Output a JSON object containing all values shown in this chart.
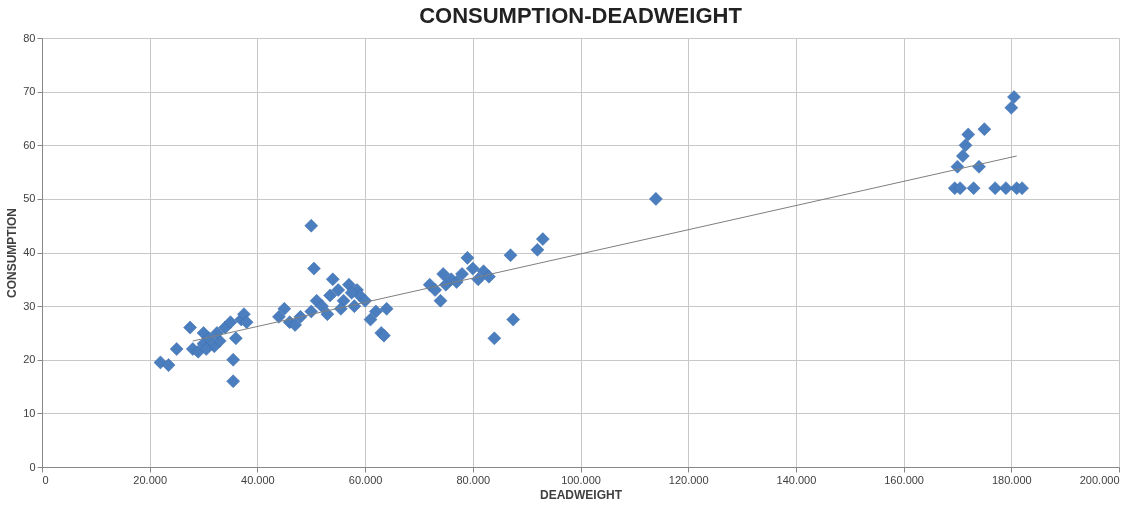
{
  "chart_data": {
    "type": "scatter",
    "title": "CONSUMPTION-DEADWEIGHT",
    "xlabel": "DEADWEIGHT",
    "ylabel": "CONSUMPTION",
    "xlim": [
      0,
      200000
    ],
    "ylim": [
      0,
      80
    ],
    "xticks": [
      0,
      {
        "value": 20000,
        "label": "20.000"
      },
      {
        "value": 40000,
        "label": "40.000"
      },
      {
        "value": 60000,
        "label": "60.000"
      },
      {
        "value": 80000,
        "label": "80.000"
      },
      {
        "value": 100000,
        "label": "100.000"
      },
      {
        "value": 120000,
        "label": "120.000"
      },
      {
        "value": 140000,
        "label": "140.000"
      },
      {
        "value": 160000,
        "label": "160.000"
      },
      {
        "value": 180000,
        "label": "180.000"
      },
      {
        "value": 200000,
        "label": "200.000"
      }
    ],
    "yticks": [
      0,
      10,
      20,
      30,
      40,
      50,
      60,
      70,
      80
    ],
    "grid": true,
    "series": [
      {
        "marker": "diamond",
        "color": "#4a7ebf",
        "x": [
          22000,
          23500,
          25000,
          27500,
          28000,
          29000,
          30000,
          30000,
          31000,
          32000,
          33000,
          34000,
          35000,
          35500,
          35500,
          36000,
          37000,
          37500,
          38000,
          30500,
          32500,
          44000,
          45000,
          46000,
          47000,
          48000,
          50000,
          50500,
          50000,
          51000,
          52000,
          53000,
          53500,
          54000,
          55000,
          56000,
          57000,
          58000,
          58500,
          59000,
          60000,
          61000,
          62000,
          63000,
          63500,
          64000,
          55500,
          57500,
          72000,
          73000,
          74000,
          74500,
          75000,
          76000,
          77000,
          78000,
          79000,
          80000,
          81000,
          82000,
          83000,
          84000,
          87000,
          87500,
          92000,
          93000,
          114000,
          169500,
          170000,
          171000,
          171500,
          172000,
          173000,
          174000,
          175000,
          177000,
          180000,
          180500,
          181000,
          179000,
          182000,
          170500
        ],
        "values": [
          19.5,
          19,
          22,
          26,
          22,
          21.5,
          23,
          25,
          24,
          22.5,
          23.5,
          26,
          27,
          20,
          16,
          24,
          27.5,
          28.5,
          27,
          22,
          25,
          28,
          29.5,
          27,
          26.5,
          28,
          45,
          37,
          29,
          31,
          30,
          28.5,
          32,
          35,
          33,
          31,
          34,
          30,
          33,
          32,
          31,
          27.5,
          29,
          25,
          24.5,
          29.5,
          29.5,
          32.5,
          34,
          33,
          31,
          36,
          34,
          35,
          34.5,
          36,
          39,
          37,
          35,
          36.5,
          35.5,
          24,
          39.5,
          27.5,
          40.5,
          42.5,
          50,
          52,
          56,
          58,
          60,
          62,
          52,
          56,
          63,
          52,
          67,
          69,
          52,
          52,
          52,
          52
        ]
      },
      {
        "type": "line",
        "marker": "none",
        "line_style": "solid",
        "color": "#7f7f7f",
        "x": [
          28000,
          181000
        ],
        "values": [
          23.5,
          58
        ]
      }
    ]
  }
}
